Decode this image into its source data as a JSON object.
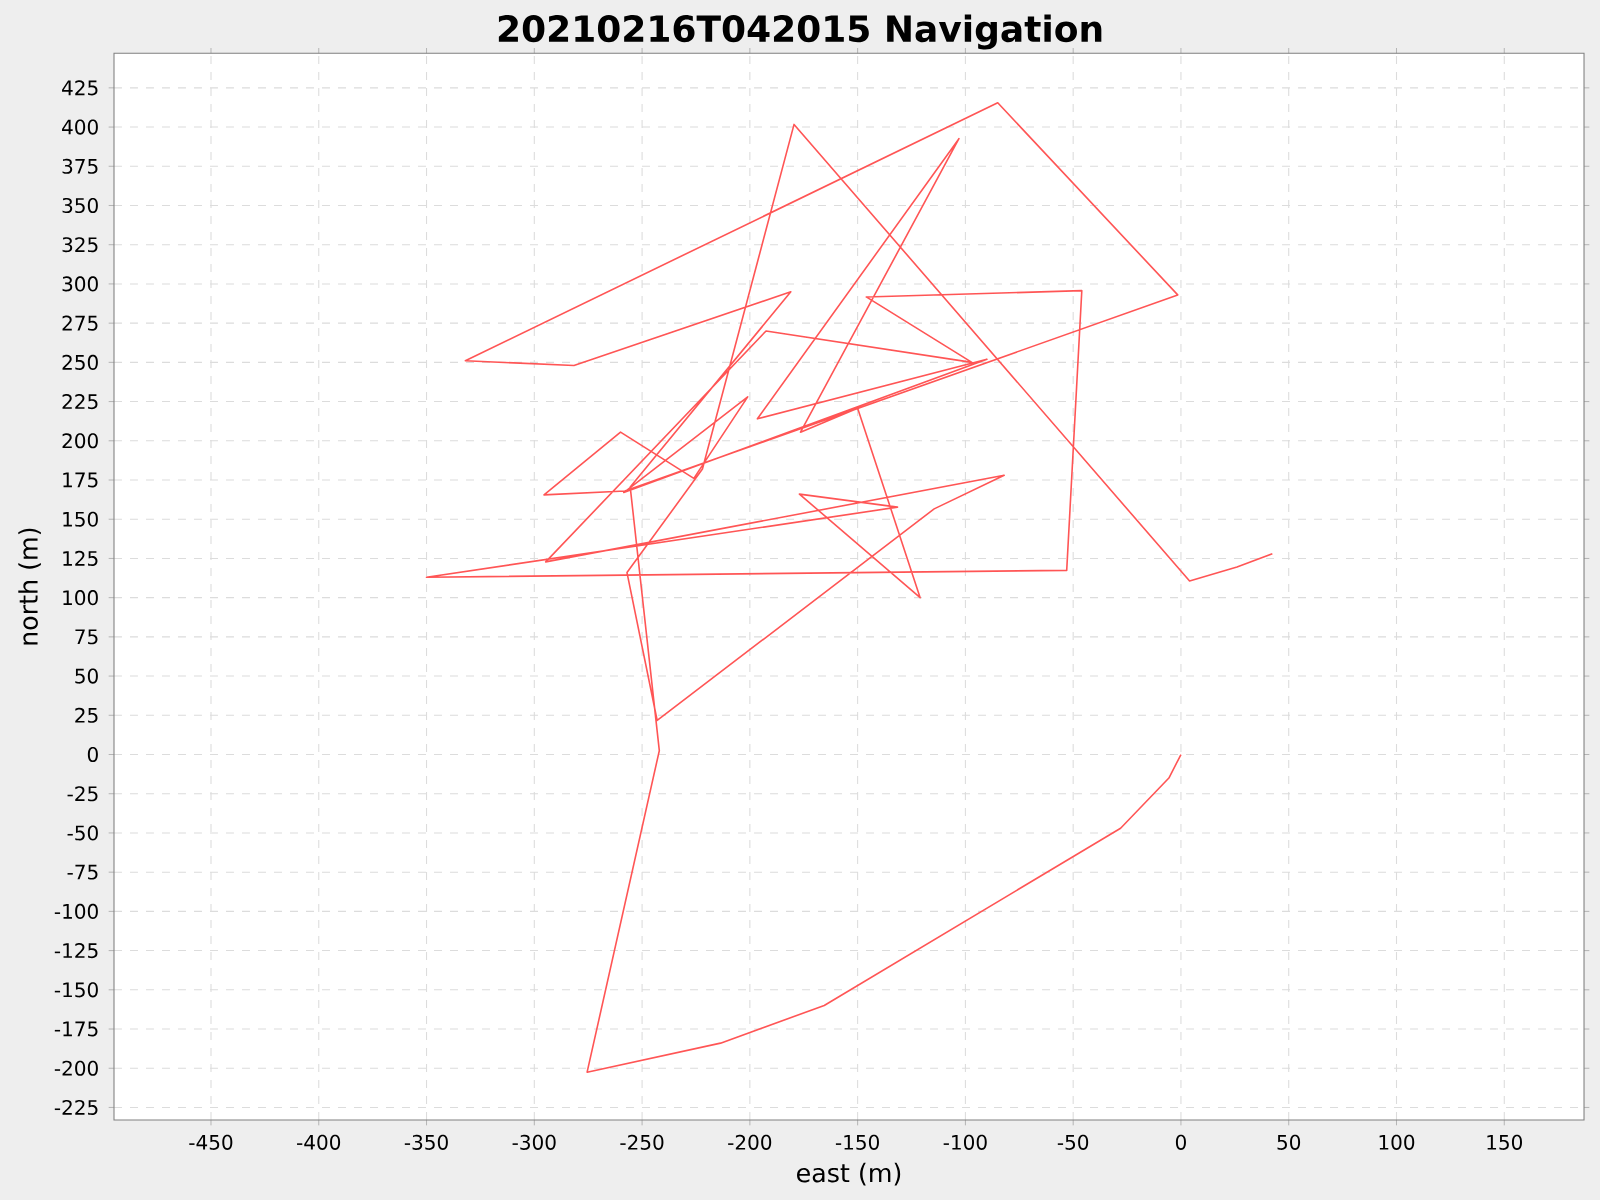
{
  "chart_data": {
    "type": "line",
    "title": "20210216T042015 Navigation",
    "xlabel": "east (m)",
    "ylabel": "north (m)",
    "x": [
      0,
      -5.6,
      -28,
      -165.5,
      -213.6,
      -275.5,
      -242,
      -255.5,
      -181,
      -281.6,
      -332,
      -85,
      -1.5,
      -258,
      -295.5,
      -260,
      -226,
      -201,
      -258.5,
      -90,
      -196.5,
      -103,
      -176.5,
      -150,
      -121,
      -177,
      -131.5,
      -350,
      -53,
      -46,
      -146,
      -97,
      -192.5,
      -294.7,
      -82,
      -114.5,
      -243,
      -257,
      -222,
      -179.5,
      4,
      26,
      42.4
    ],
    "values": [
      0,
      -15,
      -47,
      -160,
      -184,
      -202.5,
      2.5,
      170.5,
      295,
      248,
      251,
      415.5,
      293,
      168,
      165.5,
      205.5,
      176,
      228,
      167,
      252,
      214,
      392.6,
      205.5,
      220.8,
      100,
      166,
      157.7,
      113,
      117.4,
      295.7,
      291.7,
      250,
      270,
      122.8,
      178,
      156.6,
      21.7,
      116,
      182,
      401.7,
      110.6,
      119.5,
      128
    ],
    "color": "#ff5555",
    "xlim": [
      -495,
      187
    ],
    "ylim": [
      -233,
      447
    ],
    "xticks": [
      -450,
      -400,
      -350,
      -300,
      -250,
      -200,
      -150,
      -100,
      -50,
      0,
      50,
      100,
      150
    ],
    "yticks": [
      -225,
      -200,
      -175,
      -150,
      -125,
      -100,
      -75,
      -50,
      -25,
      0,
      25,
      50,
      75,
      100,
      125,
      150,
      175,
      200,
      225,
      250,
      275,
      300,
      325,
      350,
      375,
      400,
      425
    ],
    "grid": true
  }
}
